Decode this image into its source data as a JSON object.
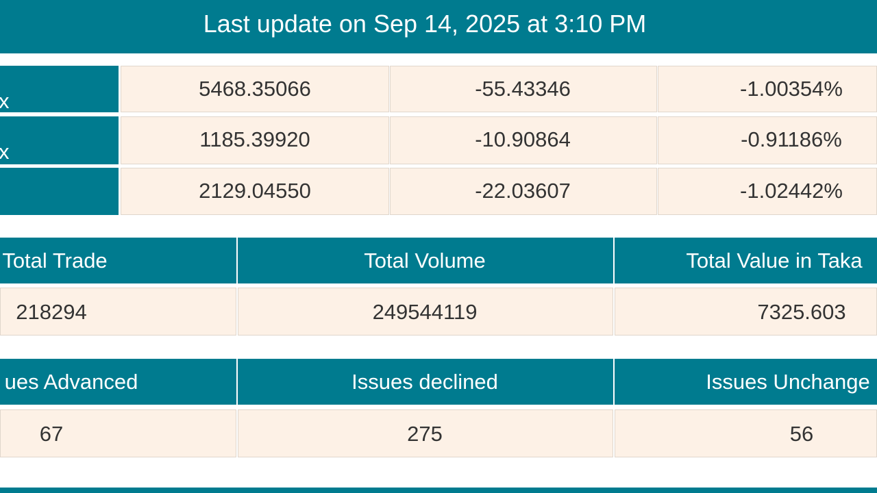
{
  "header": {
    "title": "Last update on Sep 14, 2025 at 3:10 PM"
  },
  "indices": {
    "rows": [
      {
        "label": "x",
        "values": [
          "5468.35066",
          "-55.43346",
          "-1.00354%"
        ]
      },
      {
        "label": "x",
        "values": [
          "1185.39920",
          "-10.90864",
          "-0.91186%"
        ]
      },
      {
        "values": [
          "2129.04550",
          "-22.03607",
          "-1.02442%"
        ]
      }
    ]
  },
  "trade_table": {
    "headers": [
      "Total Trade",
      "Total Volume",
      "Total Value in Taka"
    ],
    "values": [
      "218294",
      "249544119",
      "7325.603"
    ]
  },
  "issues_table": {
    "headers": [
      "ues Advanced",
      "Issues declined",
      "Issues Unchange"
    ],
    "values": [
      "67",
      "275",
      "56"
    ]
  }
}
